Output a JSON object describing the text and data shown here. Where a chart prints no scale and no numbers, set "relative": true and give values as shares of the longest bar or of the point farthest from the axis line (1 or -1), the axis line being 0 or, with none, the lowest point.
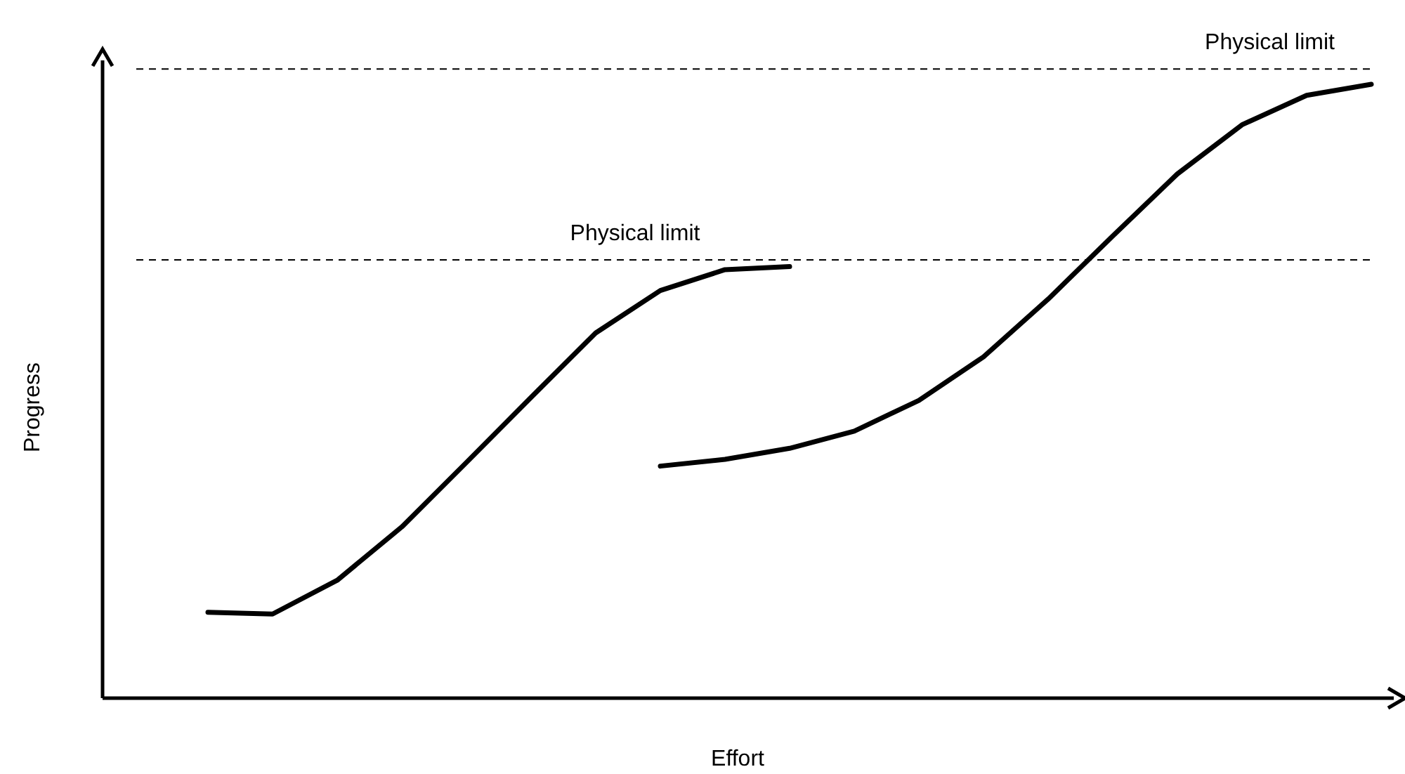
{
  "chart_data": {
    "type": "line",
    "relative": true,
    "xlabel": "Effort",
    "ylabel": "Progress",
    "marker": "none",
    "line_style": "solid",
    "categories": [
      null,
      null,
      null,
      null,
      null,
      null,
      null,
      null,
      null,
      null,
      null,
      null,
      null,
      null,
      null,
      null,
      null,
      null,
      null
    ],
    "series": [
      {
        "color": "#000000",
        "values": [
          0.14,
          0.137,
          0.192,
          0.279,
          0.384,
          0.49,
          0.595,
          0.664,
          0.698,
          0.703,
          null,
          null,
          null,
          null,
          null,
          null,
          null,
          null,
          null
        ]
      },
      {
        "color": "#000000",
        "values": [
          null,
          null,
          null,
          null,
          null,
          null,
          null,
          0.378,
          0.389,
          0.407,
          0.435,
          0.485,
          0.556,
          0.65,
          0.753,
          0.854,
          0.934,
          0.982,
          1
        ]
      }
    ],
    "ref_lines": [
      {
        "axis": "y",
        "value": 1.025,
        "label": "Physical limit",
        "line_style": "dashed",
        "color": "#000000"
      },
      {
        "axis": "y",
        "value": 0.714,
        "label": "Physical limit",
        "line_style": "dashed",
        "color": "#000000"
      }
    ]
  }
}
